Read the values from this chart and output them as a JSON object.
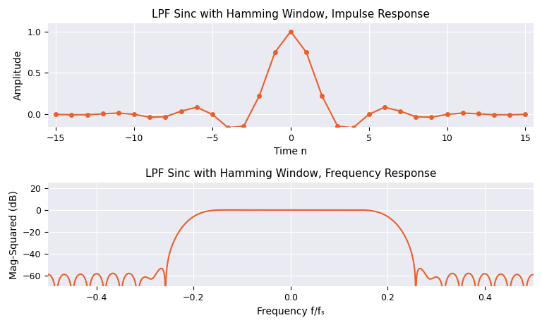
{
  "title1": "LPF Sinc with Hamming Window, Impulse Response",
  "title2": "LPF Sinc with Hamming Window, Frequency Response",
  "xlabel1": "Time n",
  "ylabel1": "Amplitude",
  "xlabel2": "Frequency f/fₛ",
  "ylabel2": "Mag-Squared (dB)",
  "line_color": "#E8602C",
  "marker": "o",
  "markersize": 4,
  "linewidth": 1.5,
  "ylim1": [
    -0.15,
    1.1
  ],
  "ylim2": [
    -70,
    25
  ],
  "xlim1": [
    -15.5,
    15.5
  ],
  "xlim2": [
    -0.5,
    0.5
  ],
  "yticks1": [
    0.0,
    0.5,
    1.0
  ],
  "yticks2": [
    -60,
    -40,
    -20,
    0,
    20
  ],
  "xticks1": [
    -15,
    -10,
    -5,
    0,
    5,
    10,
    15
  ],
  "xticks2": [
    -0.4,
    -0.2,
    0.0,
    0.2,
    0.4
  ],
  "N": 31,
  "fc": 0.2,
  "nfft": 4096,
  "bg_color": "#eaeaf2",
  "grid_color": "white",
  "fig_bg": "white"
}
